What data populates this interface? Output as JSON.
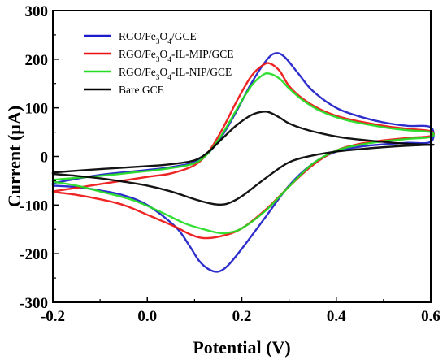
{
  "chart_data": {
    "type": "line",
    "xlabel": "Potential (V)",
    "ylabel": "Current (µA)",
    "xlim": [
      -0.2,
      0.6
    ],
    "ylim": [
      -300,
      300
    ],
    "xticks": [
      -0.2,
      0.0,
      0.2,
      0.4,
      0.6
    ],
    "xtick_labels": [
      "-0.2",
      "0.0",
      "0.2",
      "0.4",
      "0.6"
    ],
    "yticks": [
      300,
      200,
      100,
      0,
      -100,
      -200,
      -300
    ],
    "ytick_labels": [
      "300",
      "200",
      "100",
      "0",
      "-100",
      "-200",
      "-300"
    ],
    "grid": false,
    "legend_position": "top-left",
    "series": [
      {
        "name": "RGO/Fe3O4/GCE",
        "legend_parts": [
          {
            "t": "RGO/Fe"
          },
          {
            "t": "3",
            "sub": true
          },
          {
            "t": "O"
          },
          {
            "t": "4",
            "sub": true
          },
          {
            "t": "/GCE"
          }
        ],
        "color": "#1c1cc8",
        "points": [
          [
            -0.2,
            -55
          ],
          [
            -0.1,
            -38
          ],
          [
            0.0,
            -28
          ],
          [
            0.05,
            -22
          ],
          [
            0.1,
            -12
          ],
          [
            0.13,
            8
          ],
          [
            0.16,
            45
          ],
          [
            0.19,
            95
          ],
          [
            0.22,
            150
          ],
          [
            0.25,
            195
          ],
          [
            0.27,
            212
          ],
          [
            0.29,
            205
          ],
          [
            0.32,
            170
          ],
          [
            0.35,
            135
          ],
          [
            0.4,
            100
          ],
          [
            0.45,
            82
          ],
          [
            0.5,
            70
          ],
          [
            0.55,
            63
          ],
          [
            0.6,
            60
          ],
          [
            0.6,
            30
          ],
          [
            0.55,
            28
          ],
          [
            0.5,
            25
          ],
          [
            0.45,
            20
          ],
          [
            0.4,
            10
          ],
          [
            0.35,
            -15
          ],
          [
            0.3,
            -60
          ],
          [
            0.25,
            -125
          ],
          [
            0.2,
            -190
          ],
          [
            0.17,
            -225
          ],
          [
            0.15,
            -237
          ],
          [
            0.13,
            -232
          ],
          [
            0.11,
            -215
          ],
          [
            0.09,
            -185
          ],
          [
            0.06,
            -145
          ],
          [
            0.0,
            -100
          ],
          [
            -0.05,
            -80
          ],
          [
            -0.1,
            -70
          ],
          [
            -0.15,
            -63
          ],
          [
            -0.2,
            -60
          ]
        ]
      },
      {
        "name": "RGO/Fe3O4-IL-MIP/GCE",
        "legend_parts": [
          {
            "t": "RGO/Fe"
          },
          {
            "t": "3",
            "sub": true
          },
          {
            "t": "O"
          },
          {
            "t": "4",
            "sub": true
          },
          {
            "t": "-IL-MIP/GCE"
          }
        ],
        "color": "#ee1111",
        "points": [
          [
            -0.2,
            -72
          ],
          [
            -0.1,
            -57
          ],
          [
            0.0,
            -42
          ],
          [
            0.05,
            -35
          ],
          [
            0.1,
            -18
          ],
          [
            0.13,
            10
          ],
          [
            0.16,
            58
          ],
          [
            0.19,
            115
          ],
          [
            0.22,
            165
          ],
          [
            0.245,
            188
          ],
          [
            0.26,
            191
          ],
          [
            0.28,
            176
          ],
          [
            0.3,
            145
          ],
          [
            0.33,
            118
          ],
          [
            0.37,
            95
          ],
          [
            0.42,
            78
          ],
          [
            0.5,
            63
          ],
          [
            0.55,
            57
          ],
          [
            0.6,
            52
          ],
          [
            0.6,
            42
          ],
          [
            0.55,
            38
          ],
          [
            0.5,
            33
          ],
          [
            0.45,
            26
          ],
          [
            0.4,
            12
          ],
          [
            0.35,
            -18
          ],
          [
            0.3,
            -62
          ],
          [
            0.25,
            -110
          ],
          [
            0.2,
            -148
          ],
          [
            0.16,
            -163
          ],
          [
            0.12,
            -168
          ],
          [
            0.09,
            -160
          ],
          [
            0.06,
            -145
          ],
          [
            0.0,
            -120
          ],
          [
            -0.05,
            -100
          ],
          [
            -0.1,
            -88
          ],
          [
            -0.15,
            -79
          ],
          [
            -0.2,
            -73
          ]
        ]
      },
      {
        "name": "RGO/Fe3O4-IL-NIP/GCE",
        "legend_parts": [
          {
            "t": "RGO/Fe"
          },
          {
            "t": "3",
            "sub": true
          },
          {
            "t": "O"
          },
          {
            "t": "4",
            "sub": true
          },
          {
            "t": "-IL-NIP/GCE"
          }
        ],
        "color": "#22dd22",
        "points": [
          [
            -0.2,
            -48
          ],
          [
            -0.1,
            -40
          ],
          [
            0.0,
            -30
          ],
          [
            0.05,
            -24
          ],
          [
            0.1,
            -14
          ],
          [
            0.13,
            8
          ],
          [
            0.16,
            48
          ],
          [
            0.19,
            98
          ],
          [
            0.22,
            145
          ],
          [
            0.245,
            168
          ],
          [
            0.26,
            170
          ],
          [
            0.28,
            160
          ],
          [
            0.3,
            140
          ],
          [
            0.33,
            115
          ],
          [
            0.37,
            92
          ],
          [
            0.42,
            75
          ],
          [
            0.5,
            60
          ],
          [
            0.55,
            54
          ],
          [
            0.6,
            50
          ],
          [
            0.6,
            40
          ],
          [
            0.55,
            36
          ],
          [
            0.5,
            31
          ],
          [
            0.45,
            24
          ],
          [
            0.4,
            12
          ],
          [
            0.35,
            -15
          ],
          [
            0.3,
            -62
          ],
          [
            0.25,
            -112
          ],
          [
            0.2,
            -148
          ],
          [
            0.17,
            -157
          ],
          [
            0.15,
            -157
          ],
          [
            0.12,
            -150
          ],
          [
            0.08,
            -138
          ],
          [
            0.03,
            -115
          ],
          [
            -0.03,
            -90
          ],
          [
            -0.1,
            -72
          ],
          [
            -0.15,
            -60
          ],
          [
            -0.2,
            -52
          ]
        ]
      },
      {
        "name": "Bare GCE",
        "legend_parts": [
          {
            "t": "Bare GCE"
          }
        ],
        "color": "#000000",
        "points": [
          [
            -0.2,
            -33
          ],
          [
            -0.1,
            -26
          ],
          [
            0.0,
            -20
          ],
          [
            0.05,
            -16
          ],
          [
            0.1,
            -8
          ],
          [
            0.13,
            10
          ],
          [
            0.16,
            38
          ],
          [
            0.19,
            65
          ],
          [
            0.22,
            85
          ],
          [
            0.245,
            92
          ],
          [
            0.26,
            90
          ],
          [
            0.28,
            80
          ],
          [
            0.3,
            68
          ],
          [
            0.33,
            57
          ],
          [
            0.37,
            47
          ],
          [
            0.42,
            38
          ],
          [
            0.5,
            30
          ],
          [
            0.55,
            26
          ],
          [
            0.6,
            24
          ],
          [
            0.6,
            24
          ],
          [
            0.55,
            22
          ],
          [
            0.5,
            19
          ],
          [
            0.45,
            15
          ],
          [
            0.4,
            10
          ],
          [
            0.35,
            2
          ],
          [
            0.3,
            -12
          ],
          [
            0.25,
            -45
          ],
          [
            0.2,
            -82
          ],
          [
            0.17,
            -97
          ],
          [
            0.15,
            -99
          ],
          [
            0.13,
            -96
          ],
          [
            0.1,
            -88
          ],
          [
            0.05,
            -72
          ],
          [
            0.0,
            -60
          ],
          [
            -0.05,
            -52
          ],
          [
            -0.1,
            -45
          ],
          [
            -0.15,
            -40
          ],
          [
            -0.2,
            -36
          ]
        ]
      }
    ]
  }
}
